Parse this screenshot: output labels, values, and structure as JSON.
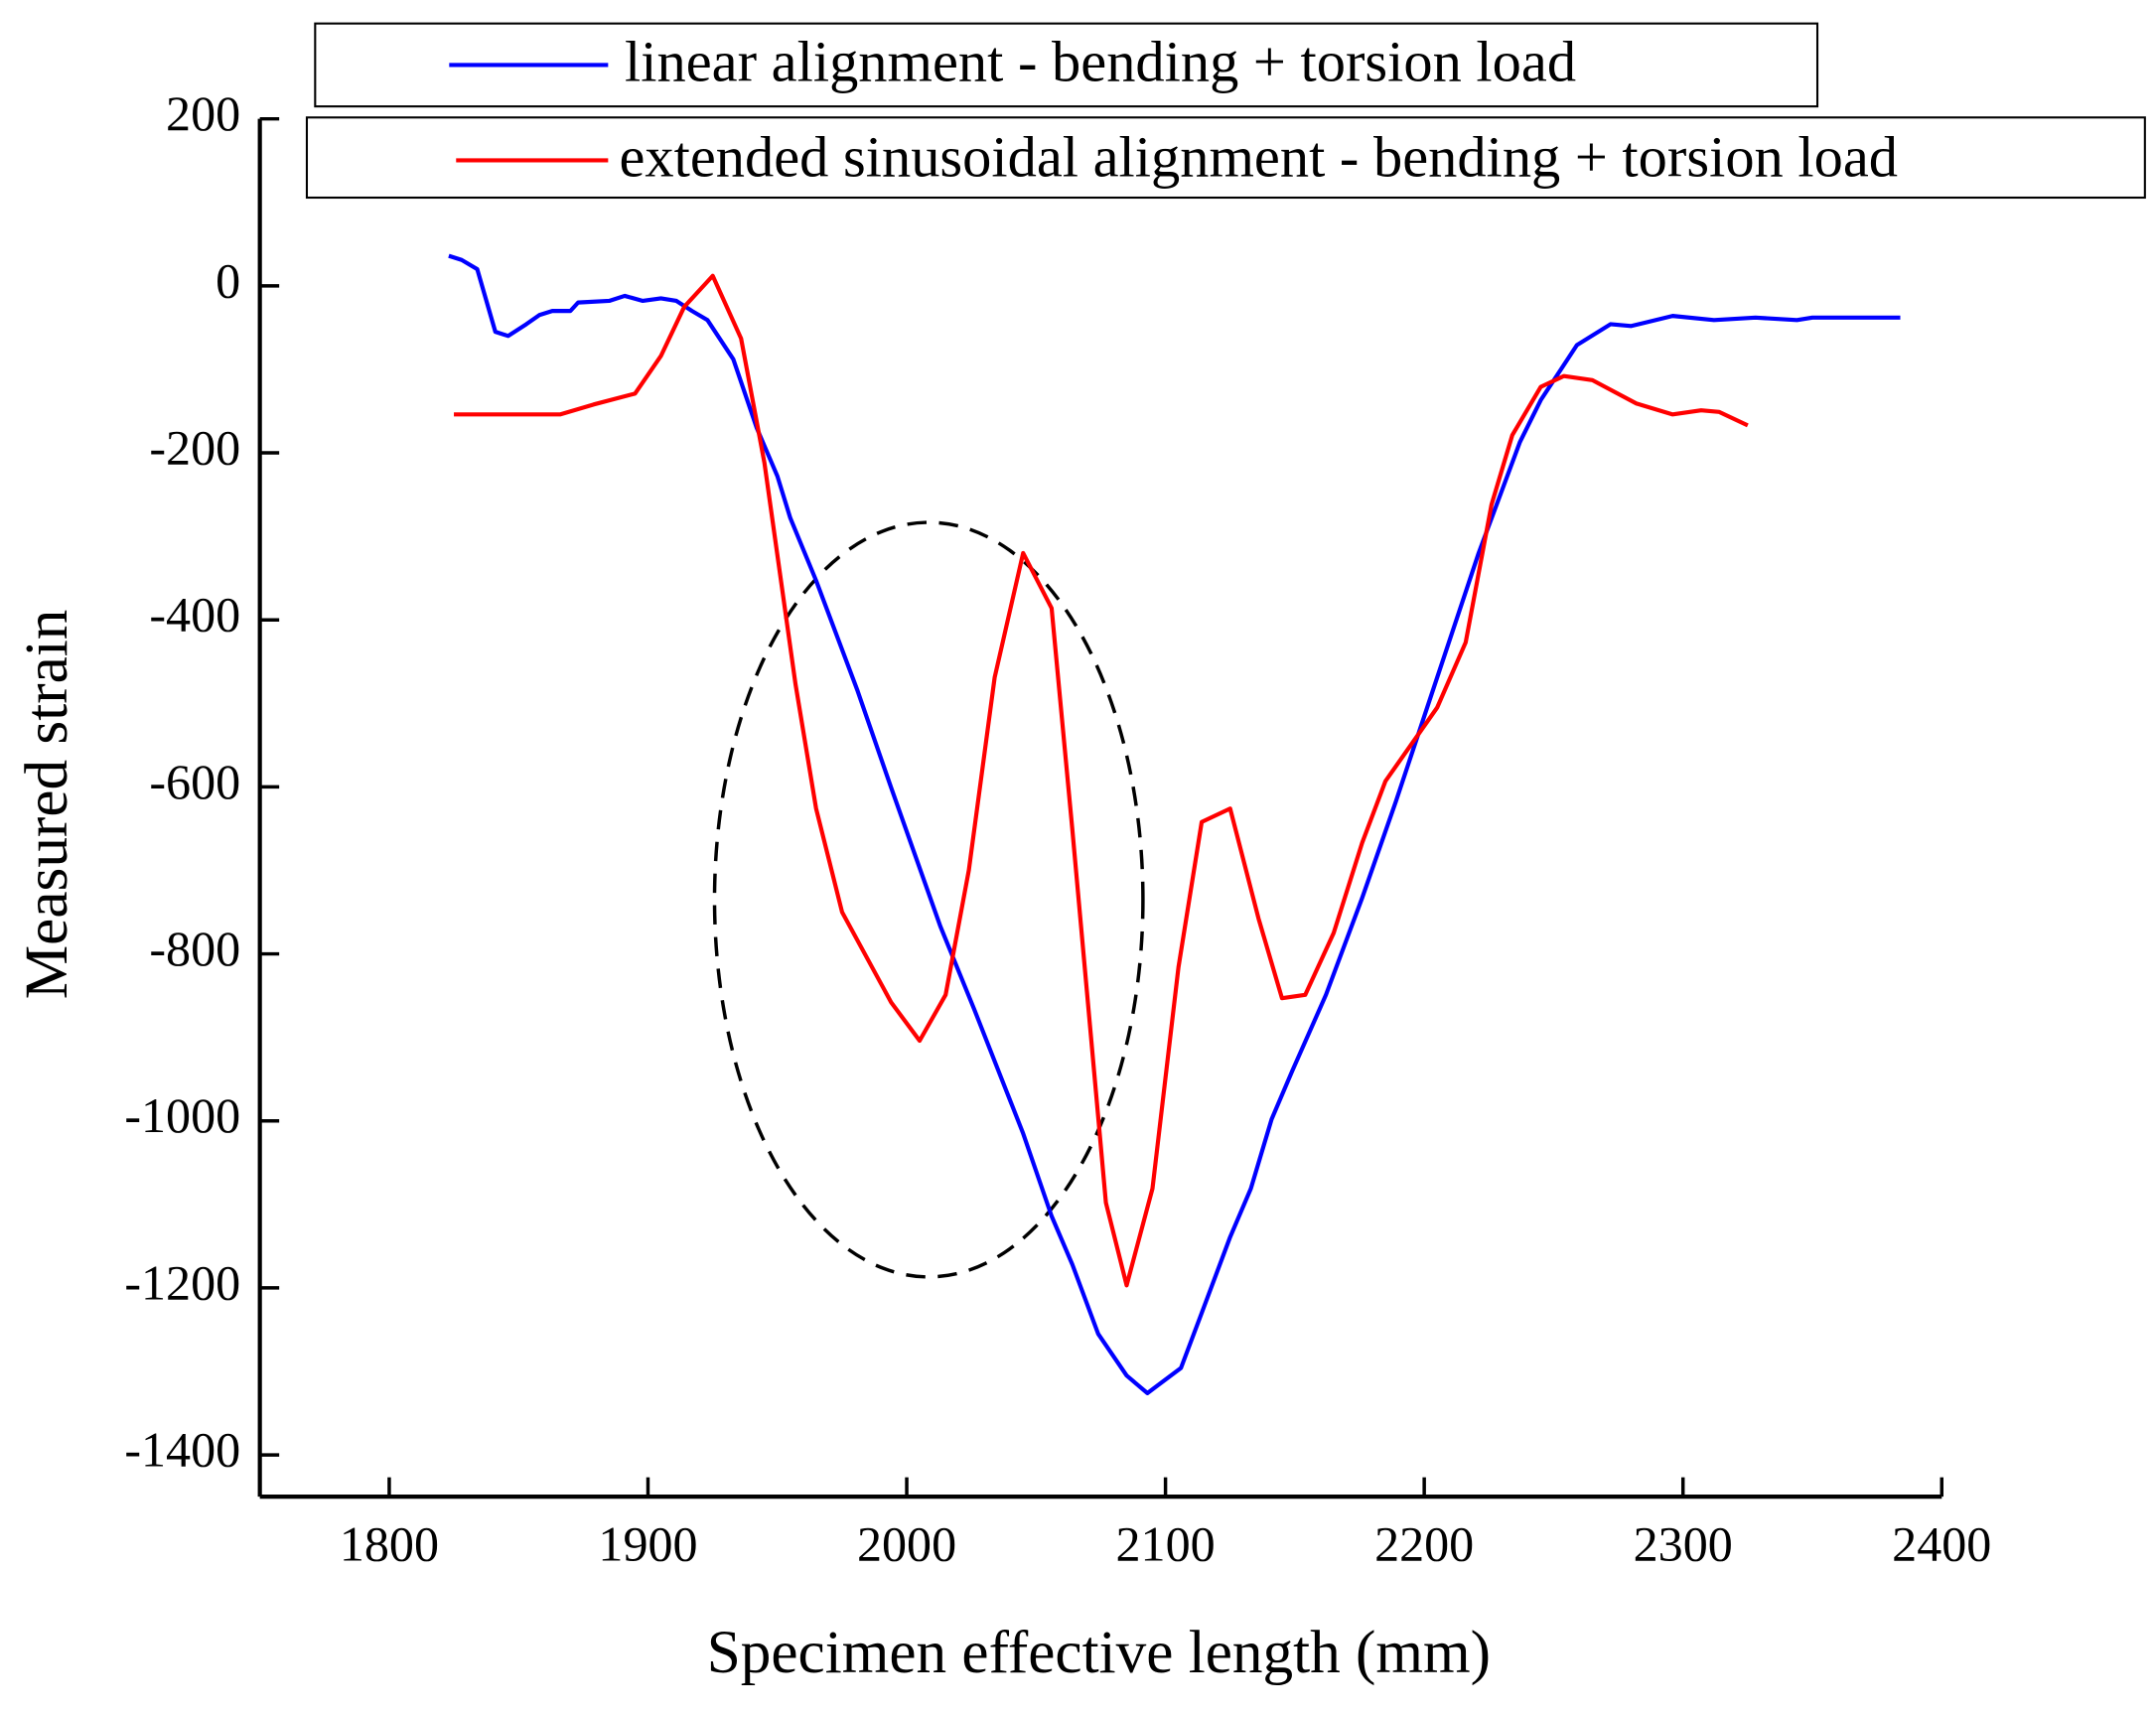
{
  "chart_data": {
    "type": "line",
    "xlabel": "Specimen effective length (mm)",
    "ylabel": "Measured strain",
    "xlim": [
      1750,
      2400
    ],
    "xticks": [
      1800,
      1900,
      2000,
      2100,
      2200,
      2300,
      2400
    ],
    "ylim": [
      -1450,
      200
    ],
    "yticks": [
      200,
      0,
      -200,
      -400,
      -600,
      -800,
      -1000,
      -1200,
      -1400
    ],
    "grid": false,
    "series": [
      {
        "name": "linear alignment - bending + torsion load",
        "color": "#0000ff",
        "x": [
          1823,
          1828,
          1834,
          1841,
          1846,
          1853,
          1858,
          1863,
          1870,
          1873,
          1885,
          1891,
          1898,
          1905,
          1911,
          1917,
          1923,
          1933,
          1942,
          1950,
          1955,
          1965,
          1981,
          1994,
          2013,
          2026,
          2045,
          2056,
          2064,
          2074,
          2085,
          2093,
          2106,
          2114,
          2125,
          2133,
          2141,
          2149,
          2162,
          2176,
          2189,
          2205,
          2221,
          2237,
          2245,
          2259,
          2272,
          2280,
          2296,
          2312,
          2328,
          2344,
          2350,
          2384
        ],
        "values": [
          36,
          31,
          20,
          -55,
          -60,
          -46,
          -35,
          -30,
          -30,
          -20,
          -18,
          -12,
          -18,
          -15,
          -18,
          -30,
          -41,
          -88,
          -170,
          -228,
          -278,
          -353,
          -485,
          -601,
          -767,
          -866,
          -1015,
          -1114,
          -1172,
          -1255,
          -1305,
          -1326,
          -1296,
          -1230,
          -1139,
          -1081,
          -998,
          -940,
          -849,
          -733,
          -618,
          -469,
          -320,
          -187,
          -137,
          -71,
          -46,
          -48,
          -36,
          -41,
          -38,
          -41,
          -38,
          -38
        ]
      },
      {
        "name": "extended sinusoidal alignment - bending + torsion load",
        "color": "#ff0000",
        "x": [
          1825,
          1866,
          1879,
          1895,
          1905,
          1914,
          1925,
          1936,
          1945,
          1957,
          1965,
          1975,
          1994,
          2005,
          2015,
          2024,
          2034,
          2045,
          2056,
          2064,
          2077,
          2085,
          2095,
          2105,
          2114,
          2125,
          2136,
          2145,
          2154,
          2165,
          2176,
          2185,
          2205,
          2216,
          2226,
          2234,
          2245,
          2254,
          2265,
          2282,
          2296,
          2307,
          2314,
          2325
        ],
        "values": [
          -154,
          -154,
          -142,
          -129,
          -84,
          -25,
          12,
          -63,
          -212,
          -477,
          -626,
          -750,
          -858,
          -904,
          -849,
          -700,
          -469,
          -320,
          -386,
          -651,
          -1098,
          -1197,
          -1081,
          -816,
          -642,
          -626,
          -758,
          -853,
          -849,
          -775,
          -667,
          -593,
          -505,
          -427,
          -262,
          -179,
          -121,
          -108,
          -113,
          -141,
          -154,
          -149,
          -151,
          -167
        ]
      }
    ]
  }
}
